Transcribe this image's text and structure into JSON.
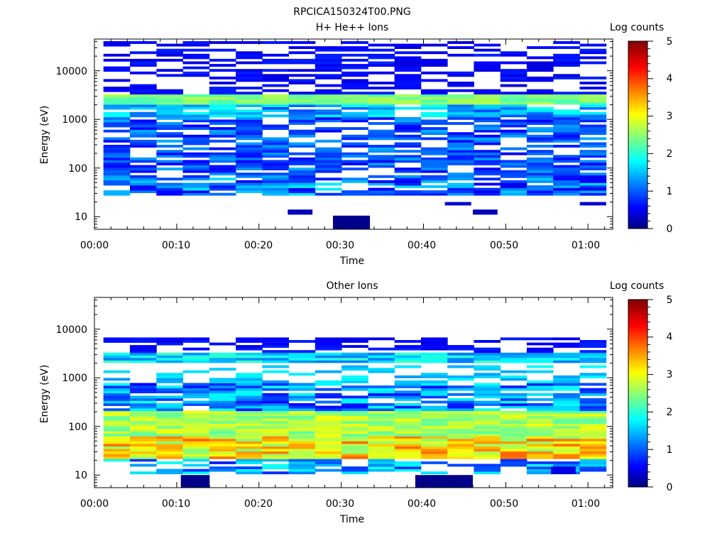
{
  "figure_title": "RPCICA150324T00.PNG",
  "chart_data": [
    {
      "type": "heatmap",
      "title": "H+ He++ Ions",
      "xlabel": "Time",
      "ylabel": "Energy (eV)",
      "x_tick_labels": [
        "00:00",
        "00:10",
        "00:20",
        "00:30",
        "00:40",
        "00:50",
        "01:00"
      ],
      "x_ticks_minutes": [
        0,
        10,
        20,
        30,
        40,
        50,
        60
      ],
      "xlim_minutes": [
        0,
        63
      ],
      "y_scale": "log",
      "y_tick_labels": [
        "10",
        "100",
        "1000",
        "10000"
      ],
      "y_ticks": [
        10,
        100,
        1000,
        10000
      ],
      "ylim": [
        5.5,
        45000
      ],
      "colorbar": {
        "label": "Log counts",
        "range": [
          0,
          5
        ],
        "tick_labels": [
          "0",
          "1",
          "2",
          "3",
          "4",
          "5"
        ]
      },
      "time_columns": 19,
      "time_start_minutes": 1.1,
      "time_end_minutes": 62.2,
      "bins_summary": [
        {
          "energy_range_ev": [
            5.5,
            10.5
          ],
          "log_counts": 0.1,
          "note": "single bin near 00:30"
        },
        {
          "energy_range_ev": [
            11,
            14
          ],
          "log_counts": 0.3,
          "note": "isolated bins near 00:25 and 00:47"
        },
        {
          "energy_range_ev": [
            17,
            20
          ],
          "log_counts": 0.4,
          "note": "isolated bins near 00:43 and 01:01"
        },
        {
          "energy_range_ev": [
            27,
            60
          ],
          "log_counts": [
            0.3,
            1.8
          ]
        },
        {
          "energy_range_ev": [
            60,
            1000
          ],
          "log_counts": [
            0.2,
            1.5
          ]
        },
        {
          "energy_range_ev": [
            1000,
            1600
          ],
          "log_counts": [
            0.8,
            2.0
          ]
        },
        {
          "energy_range_ev": [
            2000,
            3000
          ],
          "log_counts": [
            2.2,
            2.8
          ],
          "note": "brightest band"
        },
        {
          "energy_range_ev": [
            3000,
            40000
          ],
          "log_counts": [
            0.1,
            0.8
          ],
          "note": "sparse"
        }
      ]
    },
    {
      "type": "heatmap",
      "title": "Other Ions",
      "xlabel": "Time",
      "ylabel": "Energy (eV)",
      "x_tick_labels": [
        "00:00",
        "00:10",
        "00:20",
        "00:30",
        "00:40",
        "00:50",
        "01:00"
      ],
      "x_ticks_minutes": [
        0,
        10,
        20,
        30,
        40,
        50,
        60
      ],
      "xlim_minutes": [
        0,
        63
      ],
      "y_scale": "log",
      "y_tick_labels": [
        "10",
        "100",
        "1000",
        "10000"
      ],
      "y_ticks": [
        10,
        100,
        1000,
        10000
      ],
      "ylim": [
        5.5,
        45000
      ],
      "colorbar": {
        "label": "Log counts",
        "range": [
          0,
          5
        ],
        "tick_labels": [
          "0",
          "1",
          "2",
          "3",
          "4",
          "5"
        ]
      },
      "time_columns": 19,
      "time_start_minutes": 1.1,
      "time_end_minutes": 62.2,
      "bins_summary": [
        {
          "energy_range_ev": [
            5.5,
            10
          ],
          "log_counts": 0.05,
          "note": "near 00:12 and 00:40-00:46"
        },
        {
          "energy_range_ev": [
            10,
            20
          ],
          "log_counts": [
            0.1,
            2.0
          ]
        },
        {
          "energy_range_ev": [
            20,
            60
          ],
          "log_counts": [
            2.5,
            3.9
          ],
          "note": "brightest band"
        },
        {
          "energy_range_ev": [
            60,
            200
          ],
          "log_counts": [
            2.3,
            3.1
          ]
        },
        {
          "energy_range_ev": [
            200,
            700
          ],
          "log_counts": [
            0.3,
            2.0
          ]
        },
        {
          "energy_range_ev": [
            700,
            1800
          ],
          "log_counts": [
            0.3,
            1.9
          ],
          "note": "sparse"
        },
        {
          "energy_range_ev": [
            2000,
            3200
          ],
          "log_counts": [
            1.2,
            2.2
          ]
        },
        {
          "energy_range_ev": [
            3200,
            6000
          ],
          "log_counts": [
            0.2,
            0.8
          ],
          "note": "sparse"
        }
      ]
    }
  ],
  "colors": {
    "colormap": "jet",
    "background": "#ffffff",
    "axis": "#000000"
  }
}
